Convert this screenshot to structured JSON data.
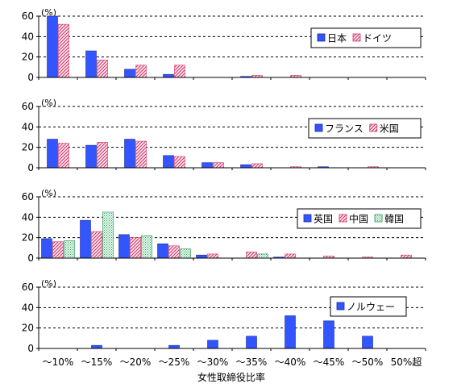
{
  "chart_data": [
    {
      "type": "bar",
      "unit_label": "(%)",
      "ylim": [
        0,
        60
      ],
      "yticks": [
        0,
        20,
        40,
        60
      ],
      "grid": "horizontal-dashed",
      "legend_position": "top-right",
      "categories": [
        "～10%",
        "～15%",
        "～20%",
        "～25%",
        "～30%",
        "～35%",
        "～40%",
        "～45%",
        "～50%",
        "50%超"
      ],
      "series": [
        {
          "name": "日本",
          "values": [
            60,
            26,
            8,
            3,
            0,
            1,
            0,
            0,
            0,
            0
          ]
        },
        {
          "name": "ドイツ",
          "values": [
            52,
            17,
            12,
            12,
            0,
            2,
            2,
            0,
            0,
            0
          ]
        }
      ]
    },
    {
      "type": "bar",
      "unit_label": "(%)",
      "ylim": [
        0,
        60
      ],
      "yticks": [
        0,
        20,
        40,
        60
      ],
      "grid": "horizontal-dashed",
      "legend_position": "top-right",
      "categories": [
        "～10%",
        "～15%",
        "～20%",
        "～25%",
        "～30%",
        "～35%",
        "～40%",
        "～45%",
        "～50%",
        "50%超"
      ],
      "series": [
        {
          "name": "フランス",
          "values": [
            28,
            22,
            28,
            12,
            5,
            3,
            0,
            1,
            0,
            0
          ]
        },
        {
          "name": "米国",
          "values": [
            24,
            25,
            26,
            11,
            5,
            4,
            1,
            0,
            1,
            0
          ]
        }
      ]
    },
    {
      "type": "bar",
      "unit_label": "(%)",
      "ylim": [
        0,
        60
      ],
      "yticks": [
        0,
        20,
        40,
        60
      ],
      "grid": "horizontal-dashed",
      "legend_position": "top-right",
      "categories": [
        "～10%",
        "～15%",
        "～20%",
        "～25%",
        "～30%",
        "～35%",
        "～40%",
        "～45%",
        "～50%",
        "50%超"
      ],
      "series": [
        {
          "name": "英国",
          "values": [
            19,
            37,
            23,
            14,
            3,
            0,
            1,
            0,
            0,
            0
          ]
        },
        {
          "name": "中国",
          "values": [
            16,
            26,
            20,
            12,
            4,
            6,
            4,
            2,
            1,
            3
          ]
        },
        {
          "name": "韓国",
          "values": [
            17,
            45,
            22,
            9,
            0,
            4,
            0,
            0,
            0,
            0
          ]
        }
      ]
    },
    {
      "type": "bar",
      "unit_label": "(%)",
      "ylim": [
        0,
        60
      ],
      "yticks": [
        0,
        20,
        40,
        60
      ],
      "grid": "horizontal-dashed",
      "legend_position": "top-right",
      "categories": [
        "～10%",
        "～15%",
        "～20%",
        "～25%",
        "～30%",
        "～35%",
        "～40%",
        "～45%",
        "～50%",
        "50%超"
      ],
      "series": [
        {
          "name": "ノルウェー",
          "values": [
            0,
            3,
            0,
            3,
            8,
            12,
            32,
            27,
            12,
            0
          ]
        }
      ]
    }
  ],
  "xlabel": "女性取締役比率",
  "colors": {
    "blue": "#3355ff",
    "hatch_line": "#cc3366",
    "hatch_bg": "#ffe6ee",
    "green_line": "#2e8b57",
    "green_bg": "#e6fff0",
    "grid": "#000000",
    "axis": "#000000"
  }
}
